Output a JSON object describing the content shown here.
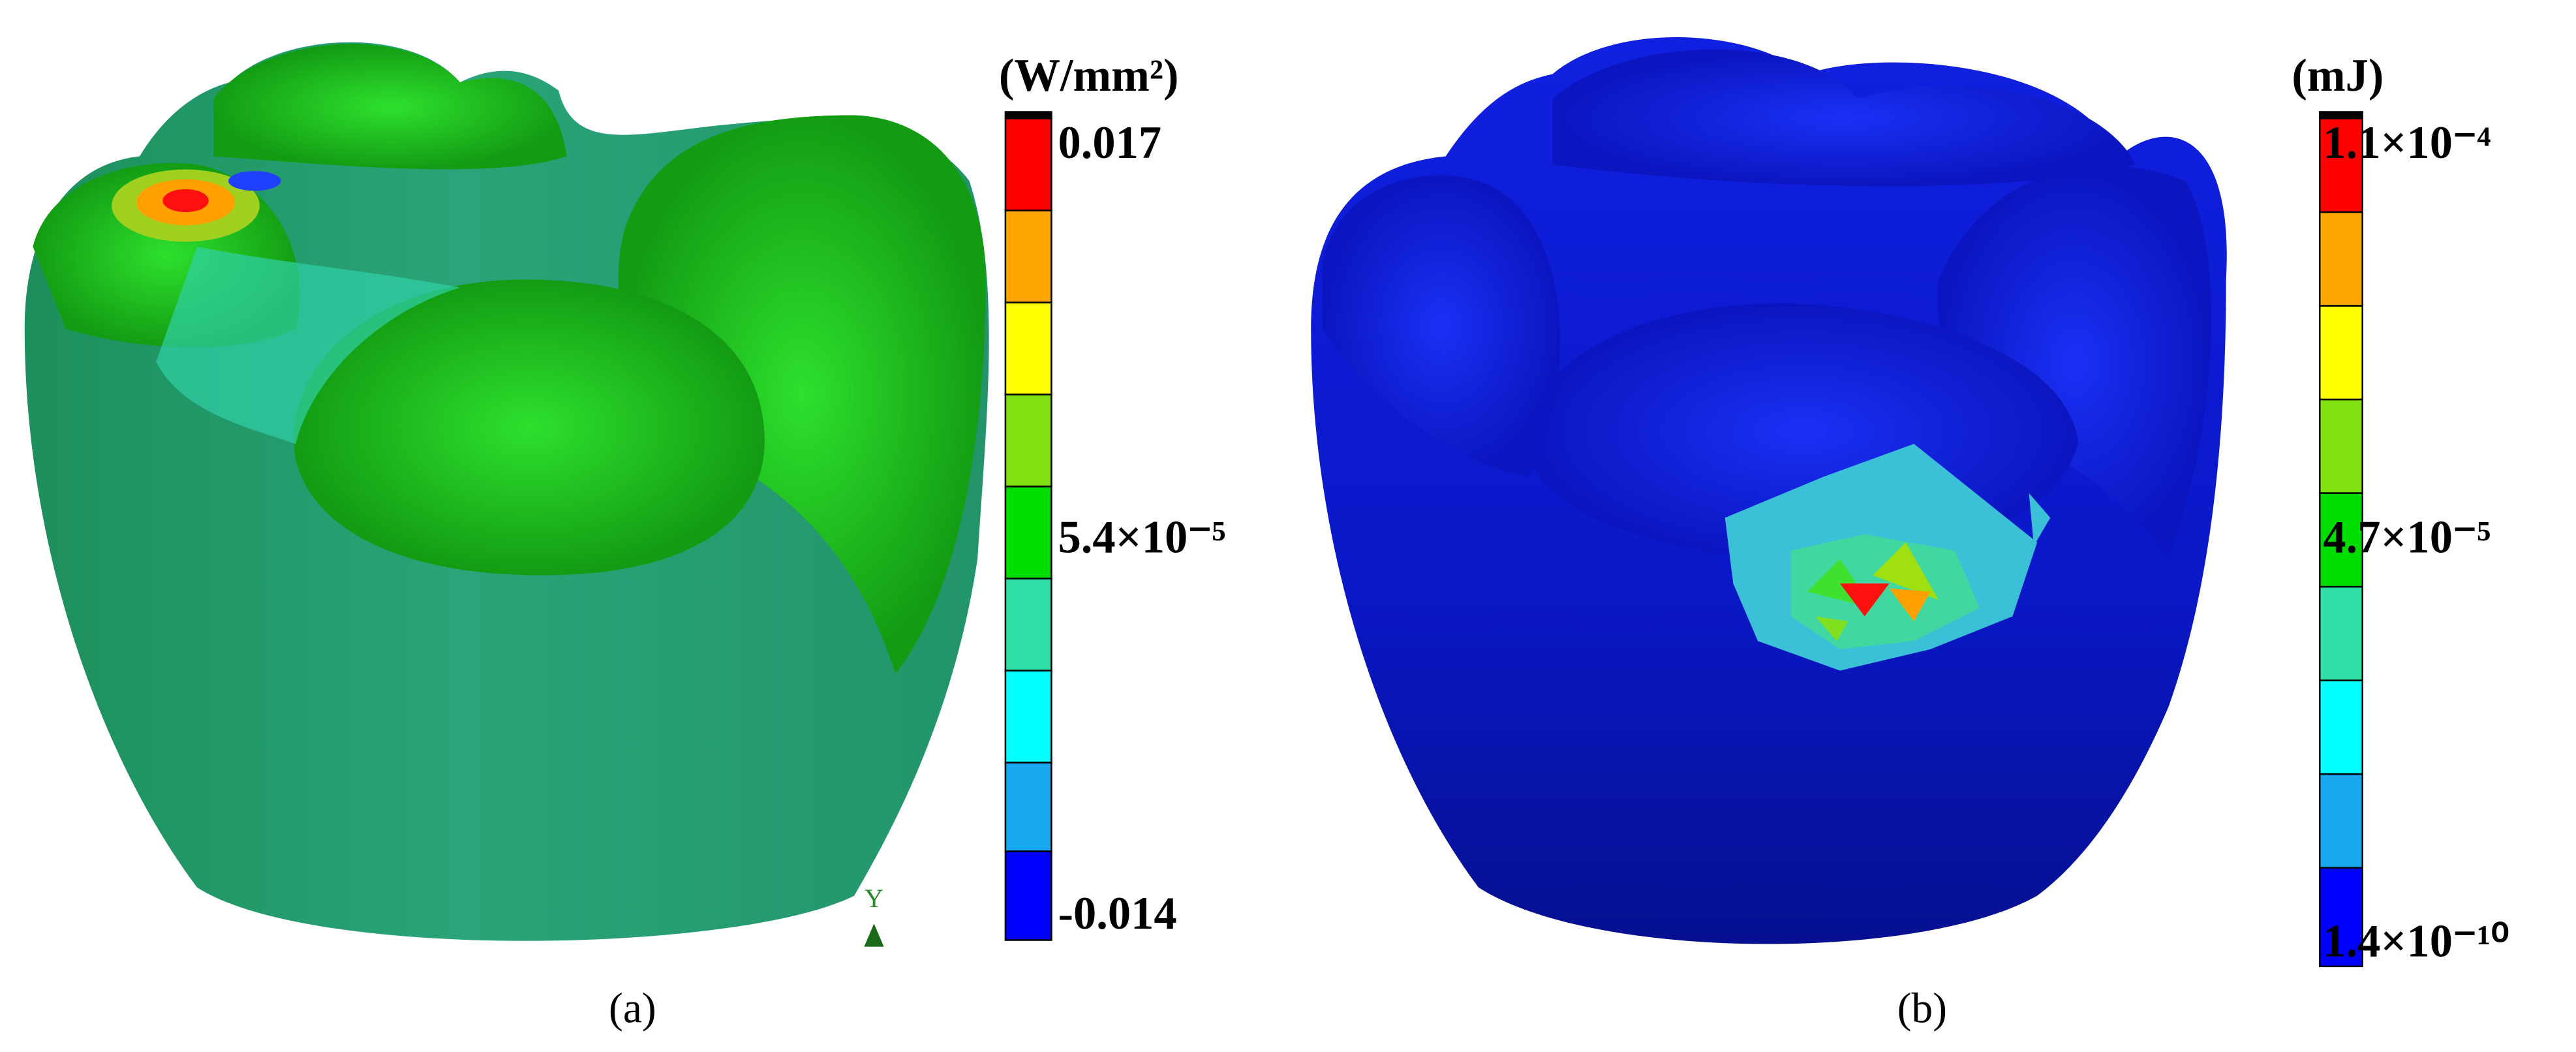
{
  "panels": [
    {
      "label": "(a)",
      "unit": "(W/mm²)",
      "scale_labels": [
        "0.017",
        "5.4×10⁻⁵",
        "-0.014"
      ],
      "triad_label": "Y"
    },
    {
      "label": "(b)",
      "unit": "(mJ)",
      "scale_labels": [
        "1.1×10⁻⁴",
        "4.7×10⁻⁵",
        "1.4×10⁻¹⁰"
      ]
    }
  ]
}
